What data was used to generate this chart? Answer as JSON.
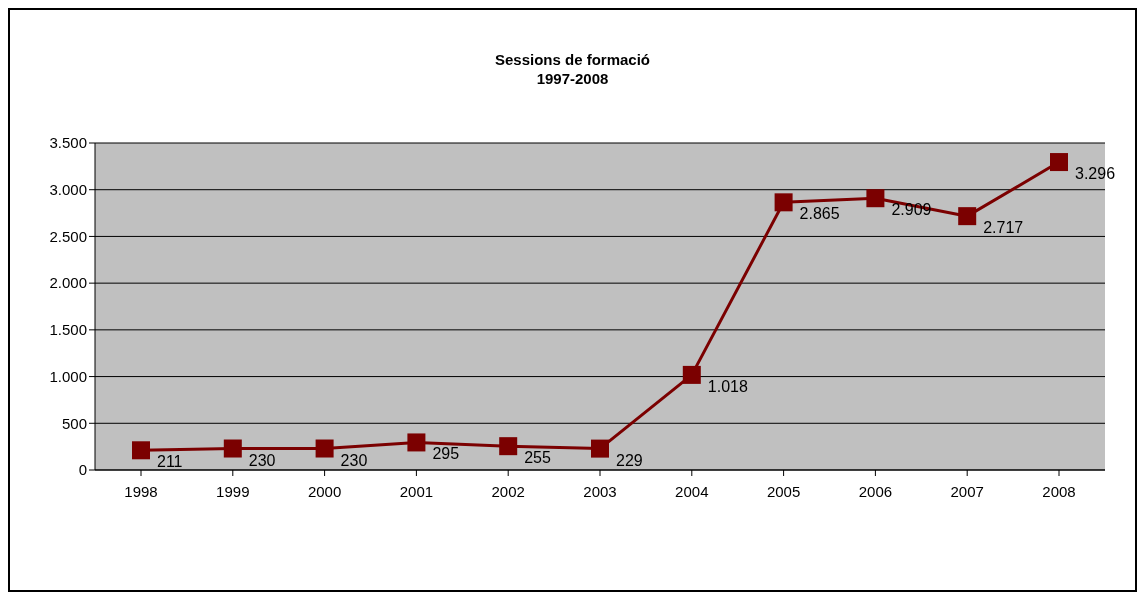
{
  "chart_data": {
    "type": "line",
    "title": "Sessions de formació\n1997-2008",
    "categories": [
      "1998",
      "1999",
      "2000",
      "2001",
      "2002",
      "2003",
      "2004",
      "2005",
      "2006",
      "2007",
      "2008"
    ],
    "series": [
      {
        "color": "#7b0000",
        "values": [
          211,
          230,
          230,
          295,
          255,
          229,
          1018,
          2865,
          2909,
          2717,
          3296
        ],
        "value_labels": [
          "211",
          "230",
          "230",
          "295",
          "255",
          "229",
          "1.018",
          "2.865",
          "2.909",
          "2.717",
          "3.296"
        ]
      }
    ],
    "ylim": [
      0,
      3500
    ],
    "yticks": [
      {
        "value": 0,
        "label": "0"
      },
      {
        "value": 500,
        "label": "500"
      },
      {
        "value": 1000,
        "label": "1.000"
      },
      {
        "value": 1500,
        "label": "1.500"
      },
      {
        "value": 2000,
        "label": "2.000"
      },
      {
        "value": 2500,
        "label": "2.500"
      },
      {
        "value": 3000,
        "label": "3.000"
      },
      {
        "value": 3500,
        "label": "3.500"
      }
    ],
    "grid": "y",
    "marker": "square",
    "line_style": "solid"
  }
}
